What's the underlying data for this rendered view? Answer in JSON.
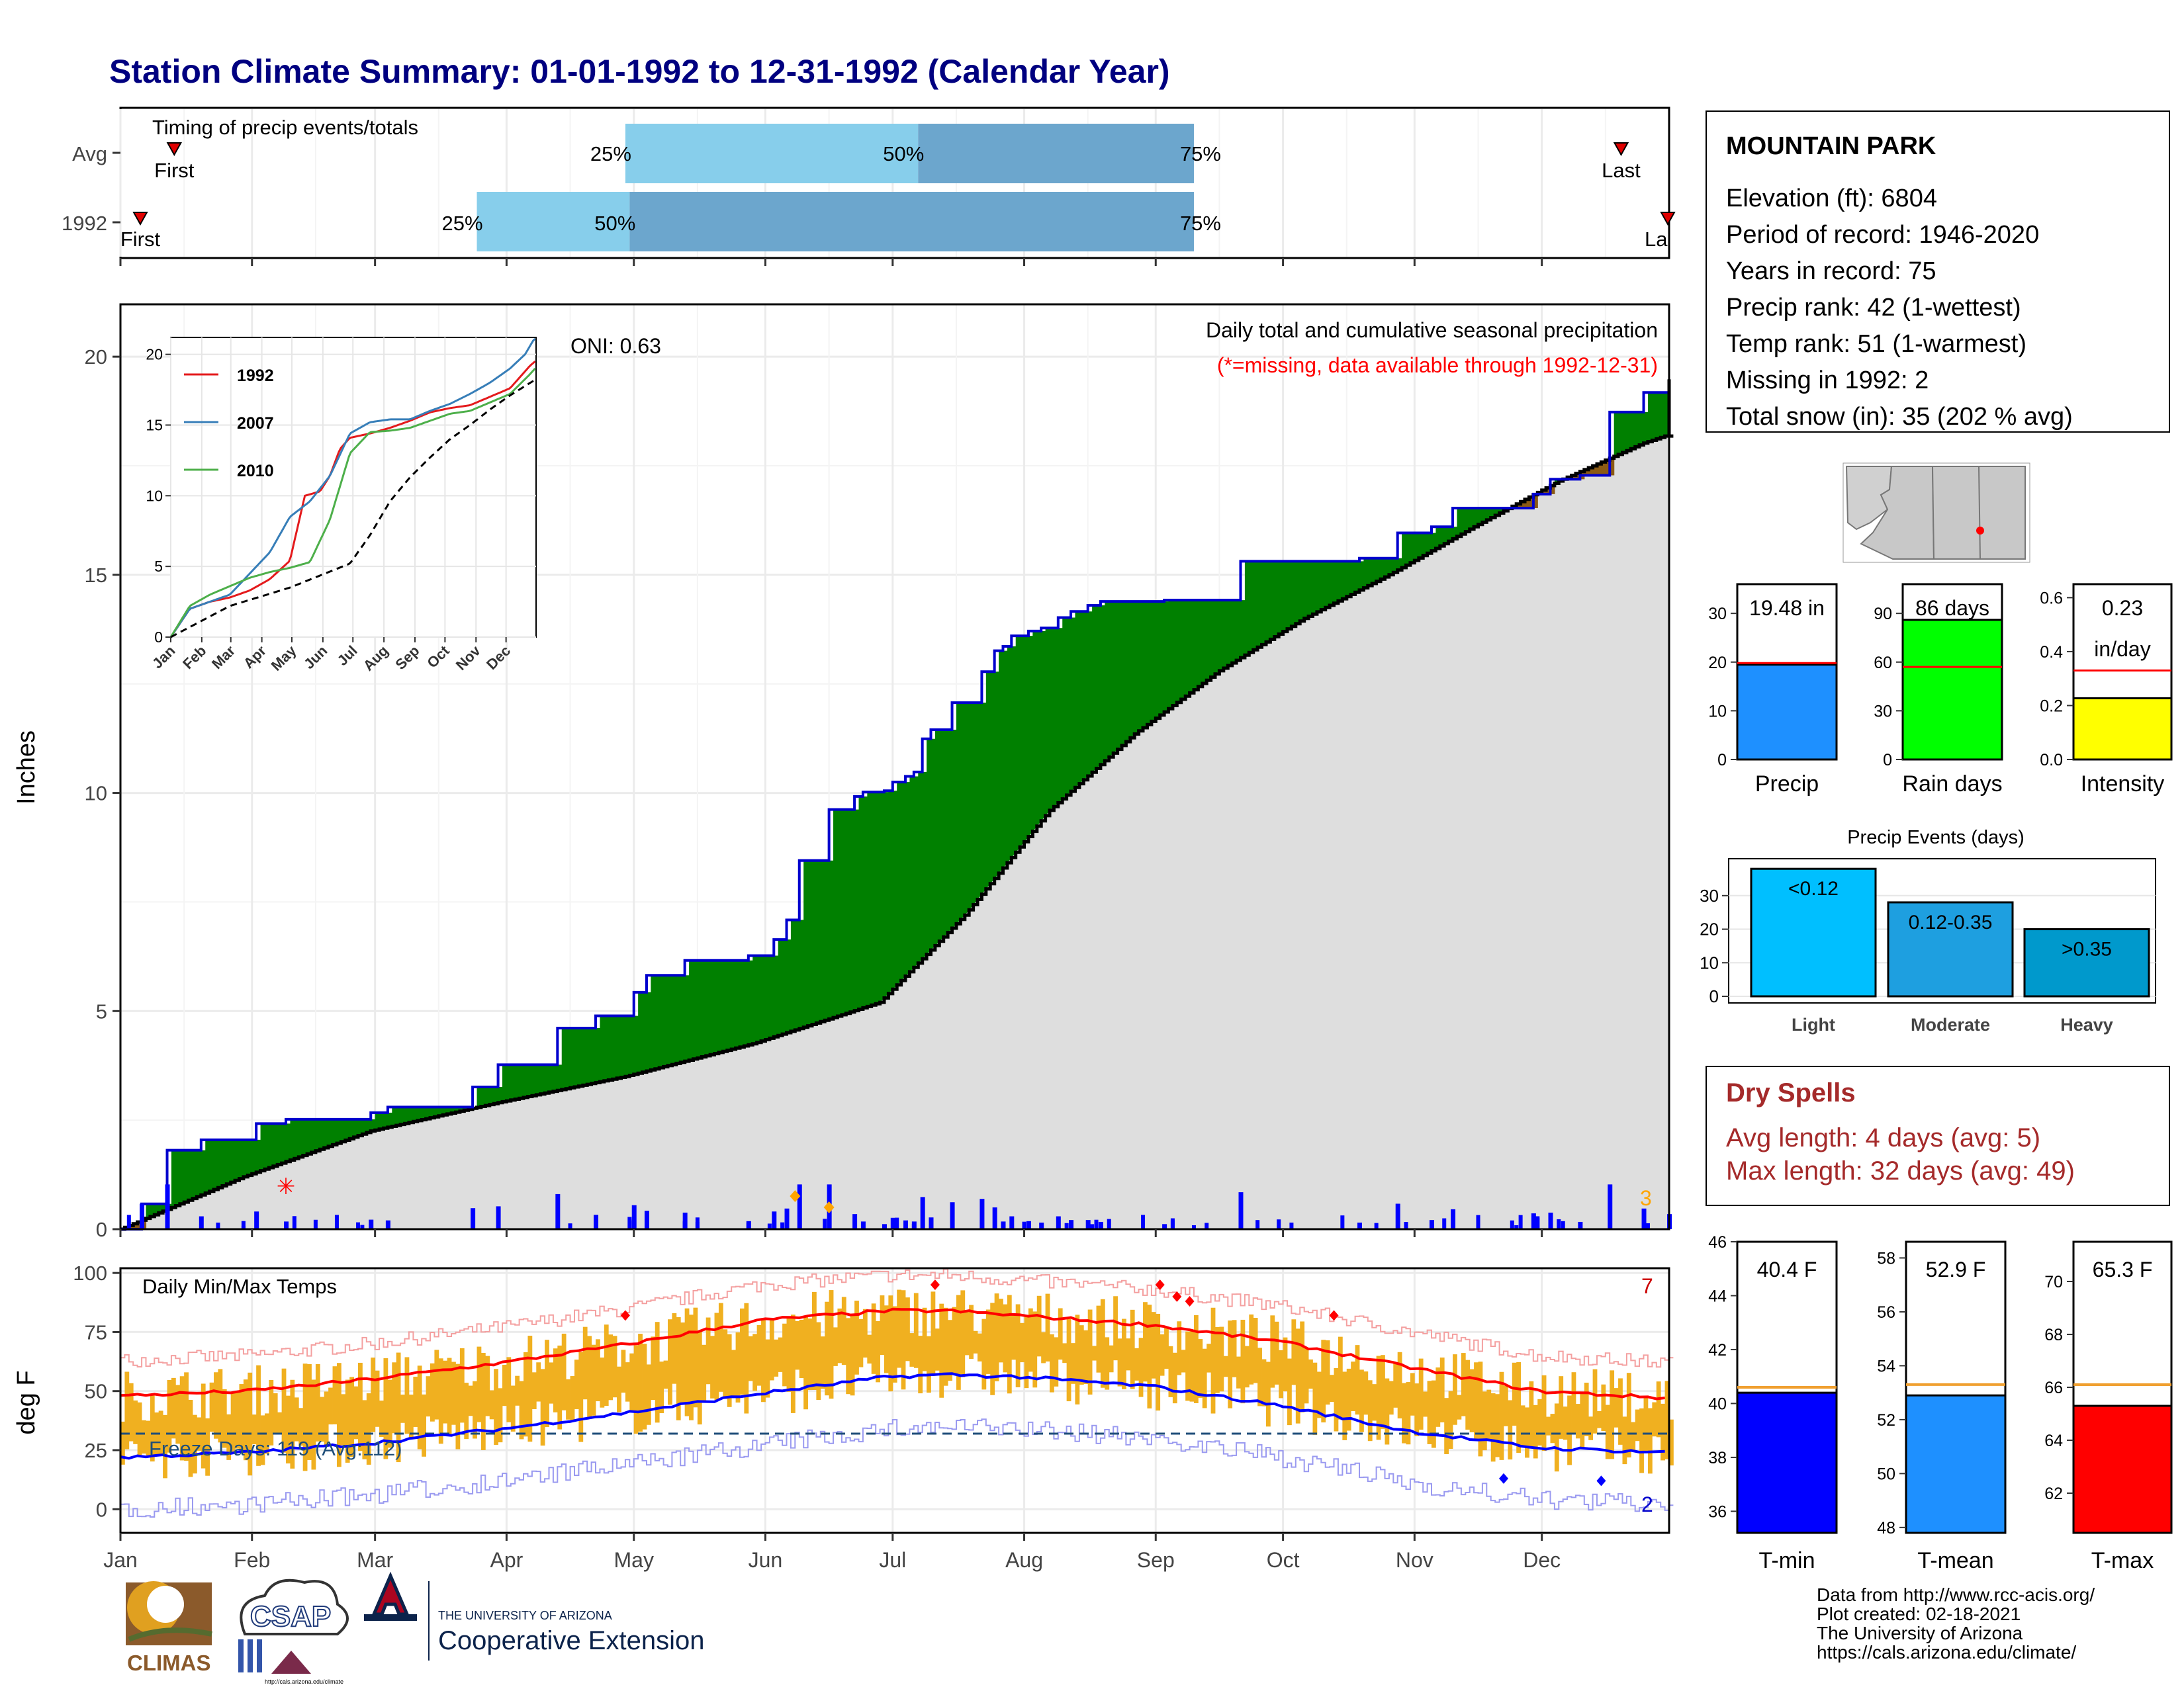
{
  "title": "Station Climate Summary: 01-01-1992 to 12-31-1992 (Calendar Year)",
  "timing": {
    "label": "Timing of precip events/totals",
    "rows": [
      {
        "name": "Avg",
        "first_label": "First",
        "last_label": "Last",
        "first_day": 9,
        "last_day": 355,
        "q25_day": 120,
        "q50_day": 189,
        "q75_day": 254,
        "q25_label": "25%",
        "q50_label": "50%",
        "q75_label": "75%"
      },
      {
        "name": "1992",
        "first_label": "First",
        "last_label": "La",
        "first_day": 1,
        "last_day": 366,
        "q25_day": 85,
        "q50_day": 121,
        "q75_day": 254,
        "q25_label": "25%",
        "q50_label": "50%",
        "q75_label": "75%"
      }
    ]
  },
  "precip_panel": {
    "ylabel": "Inches",
    "yticks": [
      "0",
      "5",
      "10",
      "15",
      "20"
    ],
    "oni": "ONI: 0.63",
    "caption": "Daily total and cumulative seasonal precipitation",
    "missing_note": "(*=missing, data available through 1992-12-31)",
    "count_label": "3"
  },
  "inset": {
    "yticks": [
      "0",
      "5",
      "10",
      "15",
      "20"
    ],
    "xticks": [
      "Jan",
      "Feb",
      "Mar",
      "Apr",
      "May",
      "Jun",
      "Jul",
      "Aug",
      "Sep",
      "Oct",
      "Nov",
      "Dec"
    ],
    "legend": [
      {
        "name": "1992",
        "color": "#e41a1c"
      },
      {
        "name": "2007",
        "color": "#377eb8"
      },
      {
        "name": "2010",
        "color": "#4daf4a"
      }
    ]
  },
  "temp_panel": {
    "ylabel": "deg F",
    "label": "Daily Min/Max Temps",
    "yticks": [
      "0",
      "25",
      "50",
      "75",
      "100"
    ],
    "freeze": "Freeze Days: 119 (Avg:112)",
    "count_hi": "7",
    "count_lo": "2"
  },
  "months": [
    "Jan",
    "Feb",
    "Mar",
    "Apr",
    "May",
    "Jun",
    "Jul",
    "Aug",
    "Sep",
    "Oct",
    "Nov",
    "Dec"
  ],
  "station": {
    "name": "MOUNTAIN PARK",
    "lines": [
      "Elevation (ft): 6804",
      "Period of record: 1946-2020",
      "Years in record: 75",
      "Precip rank: 42 (1-wettest)",
      "Temp rank: 51 (1-warmest)",
      "Missing in 1992: 2",
      "Total snow (in): 35 (202 % avg)"
    ]
  },
  "summary_bars": [
    {
      "name": "Precip",
      "label": "19.48 in",
      "value": 19.48,
      "avg": 19.8,
      "ymax": 36,
      "ticks": [
        0,
        10,
        20,
        30
      ],
      "color": "#1e90ff"
    },
    {
      "name": "Rain days",
      "label": "86 days",
      "value": 86,
      "avg": 57,
      "ymax": 108,
      "ticks": [
        0,
        30,
        60,
        90
      ],
      "color": "#00ff00"
    },
    {
      "name": "Intensity",
      "label": "0.23",
      "label2": "in/day",
      "value": 0.227,
      "avg": 0.33,
      "ymax": 0.65,
      "ticks": [
        "0.0",
        "0.2",
        "0.4",
        "0.6"
      ],
      "color": "#ffff00"
    }
  ],
  "events": {
    "title": "Precip Events (days)",
    "categories": [
      "Light",
      "Moderate",
      "Heavy"
    ],
    "labels": [
      "<0.12",
      "0.12-0.35",
      ">0.35"
    ],
    "values": [
      38,
      28,
      20
    ],
    "colors": [
      "#00bfff",
      "#1e9fe0",
      "#0099cc"
    ],
    "ticks": [
      0,
      10,
      20,
      30
    ]
  },
  "dry_spells": {
    "title": "Dry Spells",
    "avg": "Avg length: 4 days (avg: 5)",
    "max": "Max length: 32 days (avg: 49)"
  },
  "temp_bars": [
    {
      "name": "T-min",
      "label": "40.4 F",
      "value": 40.4,
      "avg": 40.6,
      "ymin": 35.2,
      "ymax": 46,
      "ticks": [
        36,
        38,
        40,
        42,
        44,
        46
      ],
      "color": "#0000ff"
    },
    {
      "name": "T-mean",
      "label": "52.9 F",
      "value": 52.9,
      "avg": 53.3,
      "ymin": 47.8,
      "ymax": 58.6,
      "ticks": [
        48,
        50,
        52,
        54,
        56,
        58
      ],
      "color": "#1e90ff"
    },
    {
      "name": "T-max",
      "label": "65.3 F",
      "value": 65.3,
      "avg": 66.1,
      "ymin": 60.5,
      "ymax": 71.5,
      "ticks": [
        62,
        64,
        66,
        68,
        70
      ],
      "color": "#ff0000"
    }
  ],
  "credits": [
    "Data from http://www.rcc-acis.org/",
    "Plot created: 02-18-2021",
    "The University of Arizona",
    "https://cals.arizona.edu/climate/"
  ],
  "logos": {
    "climas": "CLIMAS",
    "csap": "CSAP",
    "csap_url": "http://cals.arizona.edu/climate",
    "ua_small": "THE UNIVERSITY OF ARIZONA",
    "ua_big": "Cooperative Extension"
  },
  "chart_data": [
    {
      "type": "area",
      "title": "Daily total and cumulative seasonal precipitation",
      "ylabel": "Inches",
      "ylim": [
        0,
        21.2
      ],
      "xlim_day": [
        1,
        366
      ],
      "series": [
        {
          "name": "cumulative",
          "x": [
            1,
            6,
            12,
            20,
            33,
            40,
            60,
            64,
            84,
            90,
            104,
            113,
            122,
            125,
            134,
            149,
            155,
            158,
            161,
            168,
            174,
            176,
            181,
            183,
            186,
            188,
            190,
            192,
            197,
            204,
            207,
            209,
            211,
            215,
            218,
            222,
            225,
            229,
            232,
            247,
            265,
            293,
            302,
            310,
            315,
            334,
            338,
            345,
            352,
            360,
            366
          ],
          "values": [
            0,
            0.58,
            1.81,
            2.05,
            2.42,
            2.52,
            2.67,
            2.8,
            3.26,
            3.77,
            4.61,
            4.89,
            5.43,
            5.82,
            6.16,
            6.27,
            6.64,
            7.09,
            8.45,
            9.62,
            9.92,
            10.02,
            10.05,
            10.25,
            10.38,
            10.48,
            11.24,
            11.45,
            12.07,
            12.78,
            13.26,
            13.36,
            13.6,
            13.71,
            13.78,
            14.02,
            14.16,
            14.3,
            14.39,
            14.42,
            15.31,
            15.38,
            15.96,
            16.1,
            16.53,
            16.85,
            17.19,
            17.28,
            18.73,
            19.18,
            19.48
          ]
        },
        {
          "name": "average",
          "x": [
            1,
            30,
            60,
            90,
            120,
            150,
            180,
            200,
            220,
            240,
            260,
            280,
            300,
            320,
            340,
            360,
            365
          ],
          "values": [
            0,
            1.2,
            2.25,
            2.9,
            3.5,
            4.25,
            5.2,
            7.2,
            9.6,
            11.35,
            12.8,
            14.0,
            15.0,
            16.1,
            17.15,
            18.02,
            18.18
          ]
        }
      ]
    },
    {
      "type": "line",
      "title": "",
      "xticks": [
        "Jan",
        "Feb",
        "Mar",
        "Apr",
        "May",
        "Jun",
        "Jul",
        "Aug",
        "Sep",
        "Oct",
        "Nov",
        "Dec"
      ],
      "ylim": [
        0,
        21
      ],
      "series": [
        {
          "name": "1992",
          "color": "#e41a1c",
          "x": [
            1,
            20,
            40,
            60,
            80,
            100,
            120,
            135,
            150,
            160,
            170,
            180,
            200,
            220,
            240,
            260,
            280,
            300,
            320,
            340,
            360,
            365
          ],
          "values": [
            0,
            2,
            2.5,
            2.8,
            3.3,
            4.1,
            5.4,
            10.0,
            10.3,
            11.4,
            13.3,
            14.1,
            14.4,
            14.8,
            15.3,
            15.9,
            16.2,
            16.4,
            17.0,
            17.6,
            19.2,
            19.5
          ]
        },
        {
          "name": "2007",
          "color": "#377eb8",
          "x": [
            1,
            20,
            40,
            60,
            80,
            100,
            120,
            140,
            160,
            180,
            200,
            220,
            240,
            260,
            280,
            300,
            320,
            340,
            355,
            365
          ],
          "values": [
            0,
            2.0,
            2.5,
            3.0,
            4.5,
            6.0,
            8.5,
            9.6,
            11.4,
            14.4,
            15.2,
            15.4,
            15.4,
            16.0,
            16.5,
            17.2,
            18.0,
            19.0,
            20.0,
            21.2
          ]
        },
        {
          "name": "2010",
          "color": "#4daf4a",
          "x": [
            1,
            20,
            40,
            60,
            80,
            100,
            120,
            140,
            160,
            180,
            200,
            220,
            240,
            260,
            280,
            300,
            320,
            340,
            360,
            365
          ],
          "values": [
            0,
            2.2,
            3.0,
            3.6,
            4.2,
            4.6,
            4.9,
            5.3,
            8.3,
            13.0,
            14.5,
            14.6,
            14.8,
            15.3,
            15.8,
            16.0,
            16.6,
            17.2,
            18.6,
            19.0
          ]
        },
        {
          "name": "average",
          "color": "#000000",
          "x": [
            1,
            60,
            120,
            180,
            200,
            220,
            240,
            260,
            280,
            300,
            320,
            340,
            365
          ],
          "values": [
            0,
            2.2,
            3.5,
            5.2,
            7.2,
            9.6,
            11.3,
            12.7,
            14.0,
            15.0,
            16.1,
            17.1,
            18.2
          ]
        }
      ]
    },
    {
      "type": "line",
      "title": "Daily Min/Max Temps",
      "ylabel": "deg F",
      "ylim": [
        -10,
        102
      ],
      "series": [
        {
          "name": "avg max",
          "color": "#ff0000",
          "x": [
            1,
            31,
            60,
            91,
            121,
            152,
            182,
            196,
            213,
            244,
            274,
            305,
            335,
            366
          ],
          "values": [
            48,
            50,
            55,
            62,
            70,
            80,
            84,
            84,
            82,
            78,
            71,
            60,
            50,
            47
          ]
        },
        {
          "name": "avg min",
          "color": "#0000ff",
          "x": [
            1,
            31,
            60,
            91,
            121,
            152,
            182,
            196,
            213,
            244,
            274,
            305,
            335,
            366
          ],
          "values": [
            22,
            24,
            28,
            34,
            41,
            49,
            56,
            57,
            56,
            52,
            44,
            33,
            26,
            24
          ]
        },
        {
          "name": "freezing",
          "color": "#1f4e79",
          "x": [
            1,
            366
          ],
          "values": [
            32,
            32
          ]
        }
      ]
    }
  ]
}
